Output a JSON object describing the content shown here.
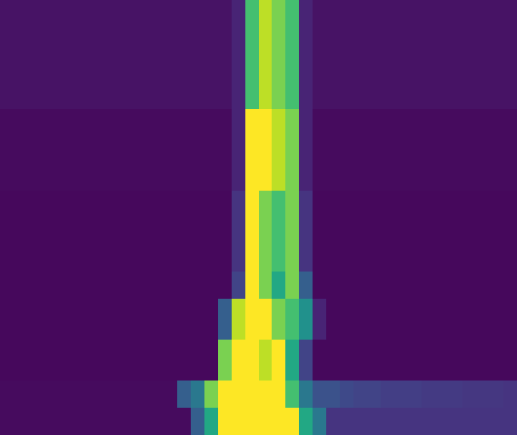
{
  "chart_data": {
    "type": "heatmap",
    "tick_labels": false,
    "color": "viridis",
    "zlim": [
      0,
      1
    ],
    "cells": [
      [
        0.05,
        0.05,
        0.05,
        0.05,
        0.05,
        0.05,
        0.05,
        0.05,
        0.05,
        0.05,
        0.05,
        0.05,
        0.05,
        0.05,
        0.05,
        0.05,
        0.05,
        0.1,
        0.7,
        0.9,
        0.8,
        0.7,
        0.1,
        0.05,
        0.05,
        0.05,
        0.05,
        0.05,
        0.05,
        0.05,
        0.05,
        0.05,
        0.05,
        0.05,
        0.05,
        0.05,
        0.05,
        0.05
      ],
      [
        0.05,
        0.05,
        0.05,
        0.05,
        0.05,
        0.05,
        0.05,
        0.05,
        0.05,
        0.05,
        0.05,
        0.05,
        0.05,
        0.05,
        0.05,
        0.05,
        0.05,
        0.1,
        0.7,
        0.9,
        0.8,
        0.7,
        0.1,
        0.05,
        0.05,
        0.05,
        0.05,
        0.05,
        0.05,
        0.05,
        0.05,
        0.05,
        0.05,
        0.05,
        0.05,
        0.05,
        0.05,
        0.05
      ],
      [
        0.05,
        0.05,
        0.05,
        0.05,
        0.05,
        0.05,
        0.05,
        0.05,
        0.05,
        0.05,
        0.05,
        0.05,
        0.05,
        0.05,
        0.05,
        0.05,
        0.05,
        0.1,
        0.7,
        0.9,
        0.8,
        0.7,
        0.1,
        0.05,
        0.05,
        0.05,
        0.05,
        0.05,
        0.05,
        0.05,
        0.05,
        0.05,
        0.05,
        0.05,
        0.05,
        0.05,
        0.05,
        0.05
      ],
      [
        0.05,
        0.05,
        0.05,
        0.05,
        0.05,
        0.05,
        0.05,
        0.05,
        0.05,
        0.05,
        0.05,
        0.05,
        0.05,
        0.05,
        0.05,
        0.05,
        0.05,
        0.1,
        0.7,
        0.9,
        0.8,
        0.7,
        0.1,
        0.05,
        0.05,
        0.05,
        0.05,
        0.05,
        0.05,
        0.05,
        0.05,
        0.05,
        0.05,
        0.05,
        0.05,
        0.05,
        0.05,
        0.05
      ],
      [
        0.05,
        0.05,
        0.05,
        0.05,
        0.05,
        0.05,
        0.05,
        0.05,
        0.05,
        0.05,
        0.05,
        0.05,
        0.05,
        0.05,
        0.05,
        0.05,
        0.05,
        0.1,
        0.7,
        0.9,
        0.8,
        0.7,
        0.1,
        0.05,
        0.05,
        0.05,
        0.05,
        0.05,
        0.05,
        0.05,
        0.05,
        0.05,
        0.05,
        0.05,
        0.05,
        0.05,
        0.05,
        0.05
      ],
      [
        0.05,
        0.05,
        0.05,
        0.05,
        0.05,
        0.05,
        0.05,
        0.05,
        0.05,
        0.05,
        0.05,
        0.05,
        0.05,
        0.05,
        0.05,
        0.05,
        0.05,
        0.1,
        0.7,
        0.9,
        0.8,
        0.7,
        0.1,
        0.05,
        0.05,
        0.05,
        0.05,
        0.05,
        0.05,
        0.05,
        0.05,
        0.05,
        0.05,
        0.05,
        0.05,
        0.05,
        0.05,
        0.05
      ],
      [
        0.05,
        0.05,
        0.05,
        0.05,
        0.05,
        0.05,
        0.05,
        0.05,
        0.05,
        0.05,
        0.05,
        0.05,
        0.05,
        0.05,
        0.05,
        0.05,
        0.05,
        0.1,
        0.7,
        0.9,
        0.8,
        0.7,
        0.1,
        0.05,
        0.05,
        0.05,
        0.05,
        0.05,
        0.05,
        0.05,
        0.05,
        0.05,
        0.05,
        0.05,
        0.05,
        0.05,
        0.05,
        0.05
      ],
      [
        0.05,
        0.05,
        0.05,
        0.05,
        0.05,
        0.05,
        0.05,
        0.05,
        0.05,
        0.05,
        0.05,
        0.05,
        0.05,
        0.05,
        0.05,
        0.05,
        0.05,
        0.1,
        0.7,
        0.9,
        0.8,
        0.7,
        0.1,
        0.05,
        0.05,
        0.05,
        0.05,
        0.05,
        0.05,
        0.05,
        0.05,
        0.05,
        0.05,
        0.05,
        0.05,
        0.05,
        0.05,
        0.05
      ],
      [
        0.03,
        0.03,
        0.03,
        0.03,
        0.03,
        0.03,
        0.03,
        0.03,
        0.03,
        0.03,
        0.03,
        0.03,
        0.03,
        0.03,
        0.03,
        0.03,
        0.03,
        0.1,
        1,
        1,
        0.9,
        0.8,
        0.1,
        0.03,
        0.03,
        0.03,
        0.03,
        0.03,
        0.03,
        0.03,
        0.03,
        0.03,
        0.03,
        0.03,
        0.03,
        0.03,
        0.03,
        0.03
      ],
      [
        0.03,
        0.03,
        0.03,
        0.03,
        0.03,
        0.03,
        0.03,
        0.03,
        0.03,
        0.03,
        0.03,
        0.03,
        0.03,
        0.03,
        0.03,
        0.03,
        0.03,
        0.1,
        1,
        1,
        0.9,
        0.8,
        0.1,
        0.03,
        0.03,
        0.03,
        0.03,
        0.03,
        0.03,
        0.03,
        0.03,
        0.03,
        0.03,
        0.03,
        0.03,
        0.03,
        0.03,
        0.03
      ],
      [
        0.03,
        0.03,
        0.03,
        0.03,
        0.03,
        0.03,
        0.03,
        0.03,
        0.03,
        0.03,
        0.03,
        0.03,
        0.03,
        0.03,
        0.03,
        0.03,
        0.03,
        0.1,
        1,
        1,
        0.9,
        0.8,
        0.1,
        0.03,
        0.03,
        0.03,
        0.03,
        0.03,
        0.03,
        0.03,
        0.03,
        0.03,
        0.03,
        0.03,
        0.03,
        0.03,
        0.03,
        0.03
      ],
      [
        0.03,
        0.03,
        0.03,
        0.03,
        0.03,
        0.03,
        0.03,
        0.03,
        0.03,
        0.03,
        0.03,
        0.03,
        0.03,
        0.03,
        0.03,
        0.03,
        0.03,
        0.1,
        1,
        1,
        0.9,
        0.8,
        0.1,
        0.03,
        0.03,
        0.03,
        0.03,
        0.03,
        0.03,
        0.03,
        0.03,
        0.03,
        0.03,
        0.03,
        0.03,
        0.03,
        0.03,
        0.03
      ],
      [
        0.03,
        0.03,
        0.03,
        0.03,
        0.03,
        0.03,
        0.03,
        0.03,
        0.03,
        0.03,
        0.03,
        0.03,
        0.03,
        0.03,
        0.03,
        0.03,
        0.03,
        0.1,
        1,
        1,
        0.9,
        0.8,
        0.1,
        0.03,
        0.03,
        0.03,
        0.03,
        0.03,
        0.03,
        0.03,
        0.03,
        0.03,
        0.03,
        0.03,
        0.03,
        0.03,
        0.03,
        0.03
      ],
      [
        0.03,
        0.03,
        0.03,
        0.03,
        0.03,
        0.03,
        0.03,
        0.03,
        0.03,
        0.03,
        0.03,
        0.03,
        0.03,
        0.03,
        0.03,
        0.03,
        0.03,
        0.1,
        1,
        1,
        0.9,
        0.8,
        0.1,
        0.03,
        0.03,
        0.03,
        0.03,
        0.03,
        0.03,
        0.03,
        0.03,
        0.03,
        0.03,
        0.03,
        0.03,
        0.03,
        0.03,
        0.03
      ],
      [
        0.02,
        0.02,
        0.02,
        0.02,
        0.02,
        0.02,
        0.02,
        0.02,
        0.02,
        0.02,
        0.02,
        0.02,
        0.02,
        0.02,
        0.02,
        0.02,
        0.02,
        0.15,
        1,
        0.8,
        0.7,
        0.8,
        0.15,
        0.02,
        0.02,
        0.02,
        0.02,
        0.02,
        0.02,
        0.02,
        0.02,
        0.02,
        0.02,
        0.02,
        0.02,
        0.02,
        0.02,
        0.02
      ],
      [
        0.02,
        0.02,
        0.02,
        0.02,
        0.02,
        0.02,
        0.02,
        0.02,
        0.02,
        0.02,
        0.02,
        0.02,
        0.02,
        0.02,
        0.02,
        0.02,
        0.02,
        0.15,
        1,
        0.8,
        0.7,
        0.8,
        0.15,
        0.02,
        0.02,
        0.02,
        0.02,
        0.02,
        0.02,
        0.02,
        0.02,
        0.02,
        0.02,
        0.02,
        0.02,
        0.02,
        0.02,
        0.02
      ],
      [
        0.02,
        0.02,
        0.02,
        0.02,
        0.02,
        0.02,
        0.02,
        0.02,
        0.02,
        0.02,
        0.02,
        0.02,
        0.02,
        0.02,
        0.02,
        0.02,
        0.02,
        0.15,
        1,
        0.8,
        0.7,
        0.8,
        0.15,
        0.02,
        0.02,
        0.02,
        0.02,
        0.02,
        0.02,
        0.02,
        0.02,
        0.02,
        0.02,
        0.02,
        0.02,
        0.02,
        0.02,
        0.02
      ],
      [
        0.02,
        0.02,
        0.02,
        0.02,
        0.02,
        0.02,
        0.02,
        0.02,
        0.02,
        0.02,
        0.02,
        0.02,
        0.02,
        0.02,
        0.02,
        0.02,
        0.02,
        0.15,
        1,
        0.8,
        0.7,
        0.8,
        0.15,
        0.02,
        0.02,
        0.02,
        0.02,
        0.02,
        0.02,
        0.02,
        0.02,
        0.02,
        0.02,
        0.02,
        0.02,
        0.02,
        0.02,
        0.02
      ],
      [
        0.02,
        0.02,
        0.02,
        0.02,
        0.02,
        0.02,
        0.02,
        0.02,
        0.02,
        0.02,
        0.02,
        0.02,
        0.02,
        0.02,
        0.02,
        0.02,
        0.02,
        0.15,
        1,
        0.8,
        0.7,
        0.8,
        0.15,
        0.02,
        0.02,
        0.02,
        0.02,
        0.02,
        0.02,
        0.02,
        0.02,
        0.02,
        0.02,
        0.02,
        0.02,
        0.02,
        0.02,
        0.02
      ],
      [
        0.02,
        0.02,
        0.02,
        0.02,
        0.02,
        0.02,
        0.02,
        0.02,
        0.02,
        0.02,
        0.02,
        0.02,
        0.02,
        0.02,
        0.02,
        0.02,
        0.02,
        0.15,
        1,
        0.8,
        0.7,
        0.8,
        0.15,
        0.02,
        0.02,
        0.02,
        0.02,
        0.02,
        0.02,
        0.02,
        0.02,
        0.02,
        0.02,
        0.02,
        0.02,
        0.02,
        0.02,
        0.02
      ],
      [
        0.02,
        0.02,
        0.02,
        0.02,
        0.02,
        0.02,
        0.02,
        0.02,
        0.02,
        0.02,
        0.02,
        0.02,
        0.02,
        0.02,
        0.02,
        0.02,
        0.02,
        0.2,
        1,
        0.8,
        0.6,
        0.8,
        0.3,
        0.02,
        0.02,
        0.02,
        0.02,
        0.02,
        0.02,
        0.02,
        0.02,
        0.02,
        0.02,
        0.02,
        0.02,
        0.02,
        0.02,
        0.02
      ],
      [
        0.02,
        0.02,
        0.02,
        0.02,
        0.02,
        0.02,
        0.02,
        0.02,
        0.02,
        0.02,
        0.02,
        0.02,
        0.02,
        0.02,
        0.02,
        0.02,
        0.02,
        0.2,
        1,
        0.8,
        0.6,
        0.8,
        0.3,
        0.02,
        0.02,
        0.02,
        0.02,
        0.02,
        0.02,
        0.02,
        0.02,
        0.02,
        0.02,
        0.02,
        0.02,
        0.02,
        0.02,
        0.02
      ],
      [
        0.02,
        0.02,
        0.02,
        0.02,
        0.02,
        0.02,
        0.02,
        0.02,
        0.02,
        0.02,
        0.02,
        0.02,
        0.02,
        0.02,
        0.02,
        0.02,
        0.3,
        0.9,
        1,
        1,
        0.8,
        0.7,
        0.5,
        0.1,
        0.02,
        0.02,
        0.02,
        0.02,
        0.02,
        0.02,
        0.02,
        0.02,
        0.02,
        0.02,
        0.02,
        0.02,
        0.02,
        0.02
      ],
      [
        0.02,
        0.02,
        0.02,
        0.02,
        0.02,
        0.02,
        0.02,
        0.02,
        0.02,
        0.02,
        0.02,
        0.02,
        0.02,
        0.02,
        0.02,
        0.02,
        0.3,
        0.9,
        1,
        1,
        0.8,
        0.7,
        0.5,
        0.1,
        0.02,
        0.02,
        0.02,
        0.02,
        0.02,
        0.02,
        0.02,
        0.02,
        0.02,
        0.02,
        0.02,
        0.02,
        0.02,
        0.02
      ],
      [
        0.02,
        0.02,
        0.02,
        0.02,
        0.02,
        0.02,
        0.02,
        0.02,
        0.02,
        0.02,
        0.02,
        0.02,
        0.02,
        0.02,
        0.02,
        0.02,
        0.3,
        0.9,
        1,
        1,
        0.8,
        0.7,
        0.5,
        0.1,
        0.02,
        0.02,
        0.02,
        0.02,
        0.02,
        0.02,
        0.02,
        0.02,
        0.02,
        0.02,
        0.02,
        0.02,
        0.02,
        0.02
      ],
      [
        0.02,
        0.02,
        0.02,
        0.02,
        0.02,
        0.02,
        0.02,
        0.02,
        0.02,
        0.02,
        0.02,
        0.02,
        0.02,
        0.02,
        0.02,
        0.02,
        0.8,
        1,
        1,
        0.9,
        1,
        0.6,
        0.2,
        0.02,
        0.02,
        0.02,
        0.02,
        0.02,
        0.02,
        0.02,
        0.02,
        0.02,
        0.02,
        0.02,
        0.02,
        0.02,
        0.02,
        0.02
      ],
      [
        0.02,
        0.02,
        0.02,
        0.02,
        0.02,
        0.02,
        0.02,
        0.02,
        0.02,
        0.02,
        0.02,
        0.02,
        0.02,
        0.02,
        0.02,
        0.02,
        0.8,
        1,
        1,
        0.9,
        1,
        0.6,
        0.2,
        0.02,
        0.02,
        0.02,
        0.02,
        0.02,
        0.02,
        0.02,
        0.02,
        0.02,
        0.02,
        0.02,
        0.02,
        0.02,
        0.02,
        0.02
      ],
      [
        0.02,
        0.02,
        0.02,
        0.02,
        0.02,
        0.02,
        0.02,
        0.02,
        0.02,
        0.02,
        0.02,
        0.02,
        0.02,
        0.02,
        0.02,
        0.02,
        0.8,
        1,
        1,
        0.9,
        1,
        0.6,
        0.2,
        0.02,
        0.02,
        0.02,
        0.02,
        0.02,
        0.02,
        0.02,
        0.02,
        0.02,
        0.02,
        0.02,
        0.02,
        0.02,
        0.02,
        0.02
      ],
      [
        0.03,
        0.03,
        0.03,
        0.03,
        0.03,
        0.03,
        0.03,
        0.03,
        0.03,
        0.03,
        0.03,
        0.03,
        0.03,
        0.3,
        0.4,
        0.8,
        1,
        1,
        1,
        1,
        1,
        0.7,
        0.4,
        0.25,
        0.25,
        0.22,
        0.2,
        0.2,
        0.18,
        0.18,
        0.18,
        0.17,
        0.17,
        0.17,
        0.16,
        0.16,
        0.16,
        0.15
      ],
      [
        0.03,
        0.03,
        0.03,
        0.03,
        0.03,
        0.03,
        0.03,
        0.03,
        0.03,
        0.03,
        0.03,
        0.03,
        0.03,
        0.3,
        0.4,
        0.8,
        1,
        1,
        1,
        1,
        1,
        0.7,
        0.4,
        0.25,
        0.25,
        0.22,
        0.2,
        0.2,
        0.18,
        0.18,
        0.18,
        0.17,
        0.17,
        0.17,
        0.16,
        0.16,
        0.16,
        0.15
      ],
      [
        0.03,
        0.03,
        0.03,
        0.03,
        0.03,
        0.03,
        0.03,
        0.03,
        0.03,
        0.03,
        0.03,
        0.03,
        0.03,
        0.03,
        0.3,
        0.6,
        1,
        1,
        1,
        1,
        1,
        1,
        0.6,
        0.4,
        0.15,
        0.15,
        0.15,
        0.15,
        0.15,
        0.15,
        0.15,
        0.15,
        0.15,
        0.15,
        0.15,
        0.15,
        0.15,
        0.15
      ],
      [
        0.03,
        0.03,
        0.03,
        0.03,
        0.03,
        0.03,
        0.03,
        0.03,
        0.03,
        0.03,
        0.03,
        0.03,
        0.03,
        0.03,
        0.3,
        0.6,
        1,
        1,
        1,
        1,
        1,
        1,
        0.6,
        0.4,
        0.15,
        0.15,
        0.15,
        0.15,
        0.15,
        0.15,
        0.15,
        0.15,
        0.15,
        0.15,
        0.15,
        0.15,
        0.15,
        0.15
      ]
    ]
  }
}
